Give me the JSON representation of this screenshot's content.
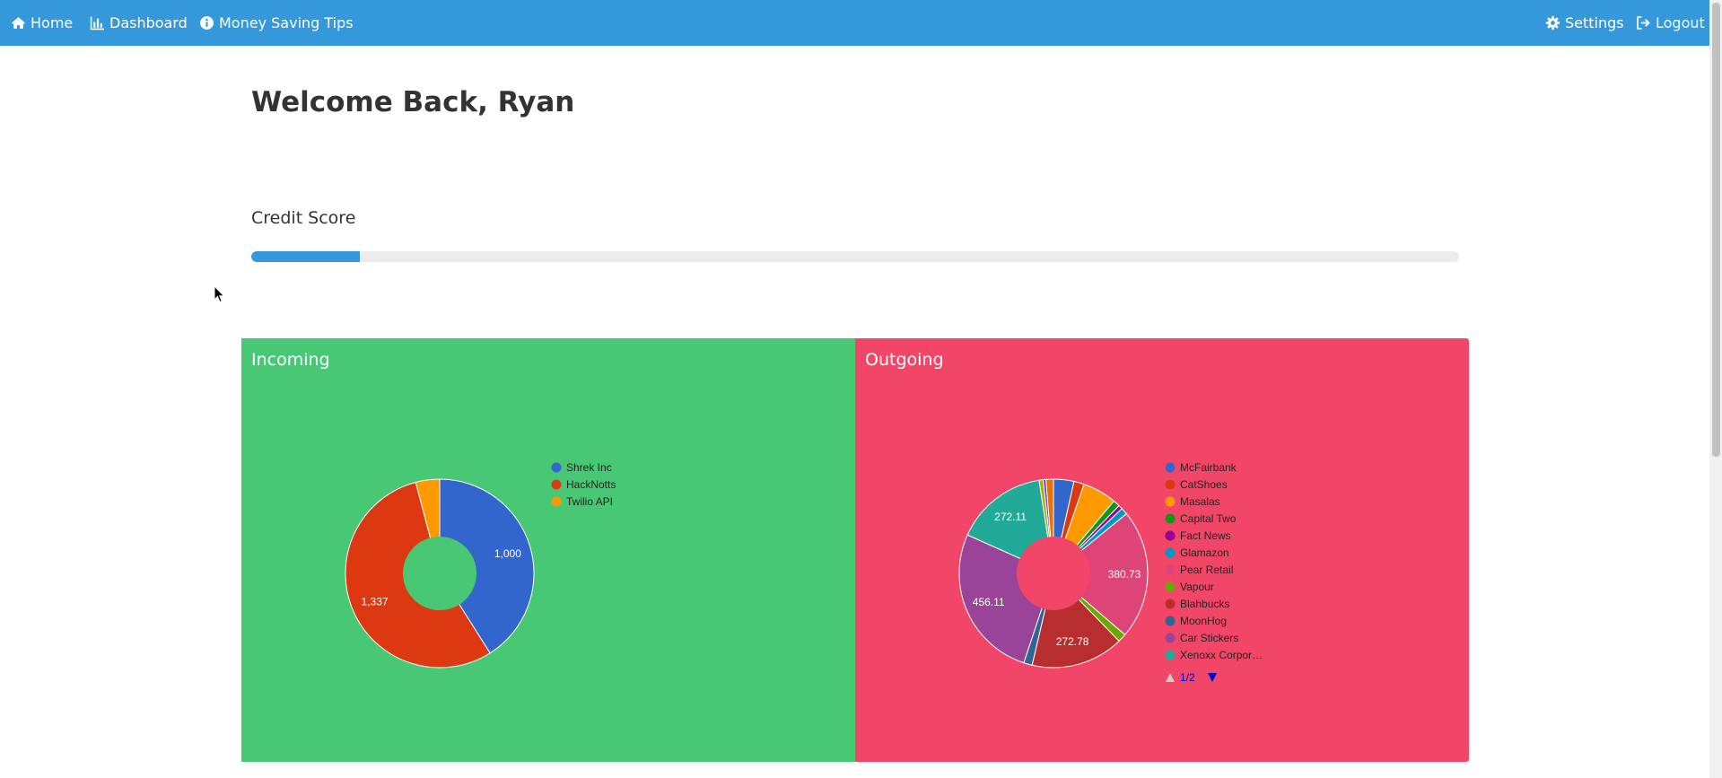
{
  "navbar": {
    "left": [
      {
        "label": "Home",
        "icon": "home-icon"
      },
      {
        "label": "Dashboard",
        "icon": "bar-chart-icon"
      },
      {
        "label": "Money Saving Tips",
        "icon": "info-icon"
      }
    ],
    "right": [
      {
        "label": "Settings",
        "icon": "gear-icon"
      },
      {
        "label": "Logout",
        "icon": "sign-out-icon"
      }
    ]
  },
  "main": {
    "welcome": "Welcome Back, Ryan",
    "credit_score_label": "Credit Score",
    "credit_score_fraction": 0.09
  },
  "colors": {
    "navbar": "#3498db",
    "incoming_panel": "#48c774",
    "outgoing_panel": "#f14668",
    "progress_fill": "#3498db",
    "progress_track": "#ececec"
  },
  "panels": {
    "incoming_title": "Incoming",
    "outgoing_title": "Outgoing"
  },
  "chart_data": [
    {
      "type": "pie",
      "title": "Incoming",
      "donut": true,
      "legend_position": "right",
      "categories": [
        "Shrek Inc",
        "HackNotts",
        "Twilio API"
      ],
      "values": [
        1000,
        1337,
        100
      ],
      "labels": [
        "1,000",
        "1,337",
        ""
      ],
      "colors": [
        "#3366cc",
        "#dc3912",
        "#ff9900"
      ]
    },
    {
      "type": "pie",
      "title": "Outgoing",
      "donut": true,
      "legend_position": "right",
      "legend_pager": "1/2",
      "categories": [
        "McFairbank",
        "CatShoes",
        "Masalas",
        "Capital Two",
        "Fact News",
        "Glamazon",
        "Pear Retail",
        "Vapour",
        "Blahbucks",
        "MoonHog",
        "Car Stickers",
        "Xenoxx Corpor…",
        "",
        "",
        ""
      ],
      "values": [
        60,
        30,
        100,
        20,
        12,
        20,
        380.73,
        25,
        272.78,
        25,
        456.11,
        272.11,
        12,
        8,
        22
      ],
      "labels": [
        "",
        "",
        "",
        "",
        "",
        "",
        "380.73",
        "",
        "272.78",
        "",
        "456.11",
        "272.11",
        "",
        "",
        ""
      ],
      "colors": [
        "#3366cc",
        "#dc3912",
        "#ff9900",
        "#109618",
        "#990099",
        "#0099c6",
        "#dd4477",
        "#66aa00",
        "#b82e2e",
        "#316395",
        "#994499",
        "#22aa99",
        "#aaaa11",
        "#6633cc",
        "#e67300"
      ]
    }
  ]
}
